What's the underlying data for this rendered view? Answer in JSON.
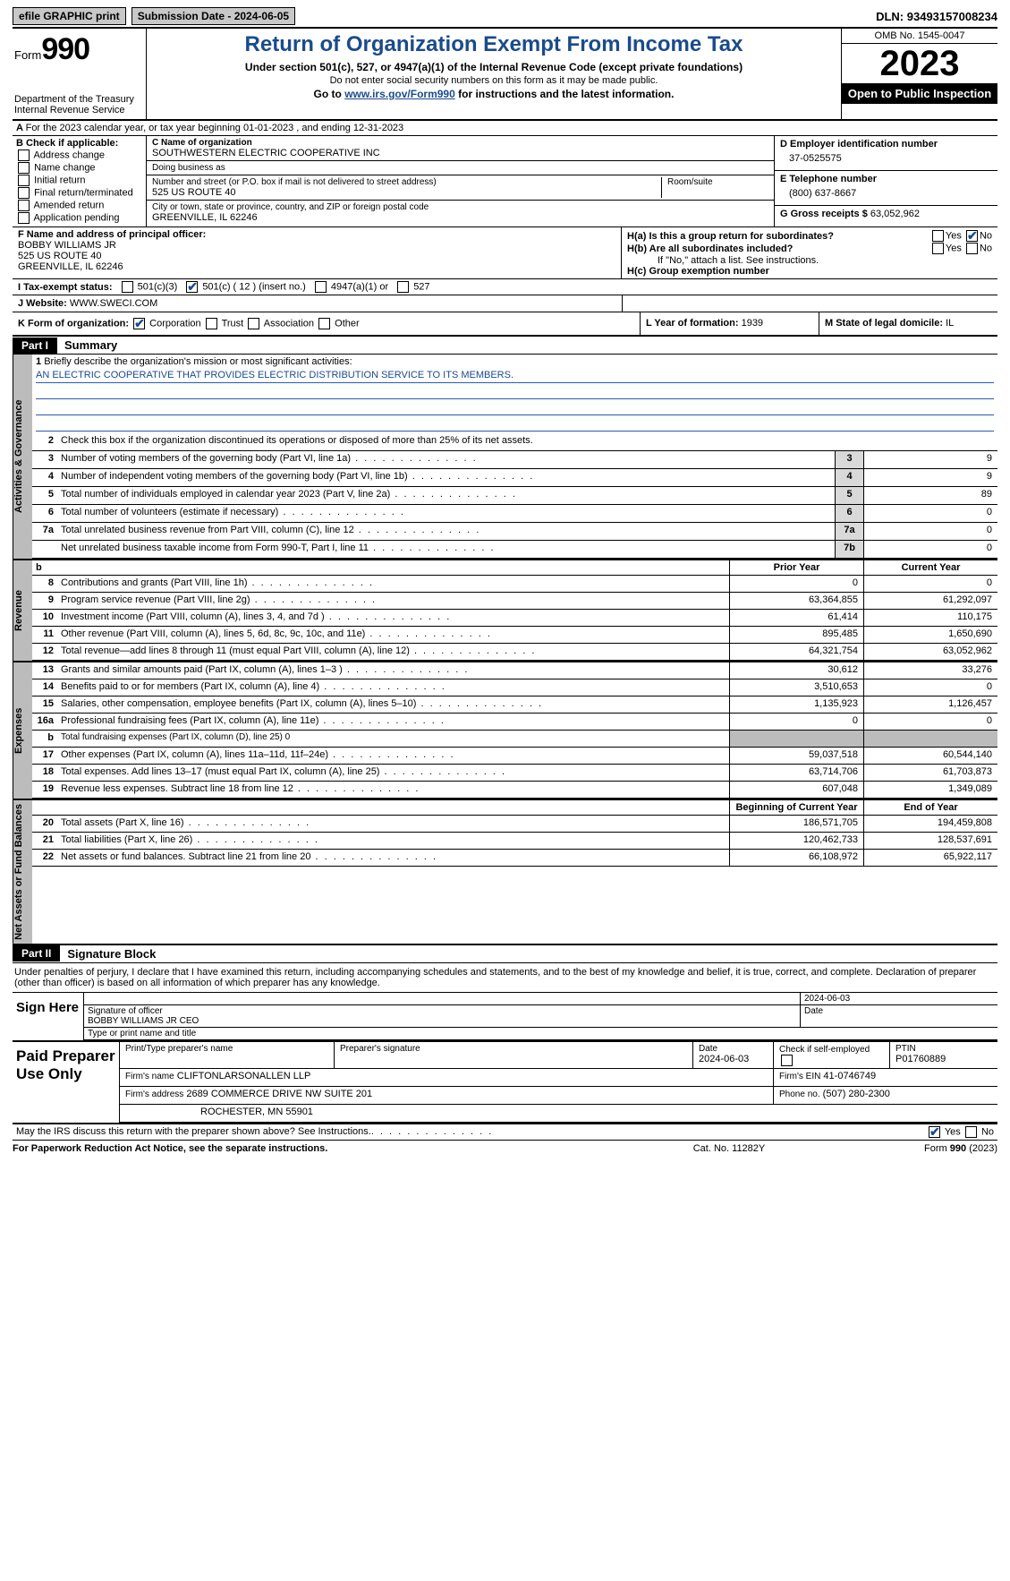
{
  "topbar": {
    "efile": "efile GRAPHIC print",
    "submission": "Submission Date - 2024-06-05",
    "dln_label": "DLN:",
    "dln": "93493157008234"
  },
  "header": {
    "form_prefix": "Form",
    "form_no": "990",
    "dept": "Department of the Treasury",
    "irs": "Internal Revenue Service",
    "title": "Return of Organization Exempt From Income Tax",
    "sub1": "Under section 501(c), 527, or 4947(a)(1) of the Internal Revenue Code (except private foundations)",
    "sub2": "Do not enter social security numbers on this form as it may be made public.",
    "sub3_pre": "Go to ",
    "sub3_link": "www.irs.gov/Form990",
    "sub3_post": " for instructions and the latest information.",
    "omb": "OMB No. 1545-0047",
    "year": "2023",
    "open": "Open to Public Inspection"
  },
  "A": {
    "text": "For the 2023 calendar year, or tax year beginning 01-01-2023   , and ending 12-31-2023"
  },
  "B": {
    "label": "B Check if applicable:",
    "opts": [
      "Address change",
      "Name change",
      "Initial return",
      "Final return/terminated",
      "Amended return",
      "Application pending"
    ]
  },
  "C": {
    "name_lbl": "C Name of organization",
    "name": "SOUTHWESTERN ELECTRIC COOPERATIVE INC",
    "dba_lbl": "Doing business as",
    "dba": "",
    "addr_lbl": "Number and street (or P.O. box if mail is not delivered to street address)",
    "room_lbl": "Room/suite",
    "addr": "525 US ROUTE 40",
    "city_lbl": "City or town, state or province, country, and ZIP or foreign postal code",
    "city": "GREENVILLE, IL  62246"
  },
  "D": {
    "lbl": "D Employer identification number",
    "val": "37-0525575"
  },
  "E": {
    "lbl": "E Telephone number",
    "val": "(800) 637-8667"
  },
  "G": {
    "lbl": "G Gross receipts $",
    "val": "63,052,962"
  },
  "F": {
    "lbl": "F  Name and address of principal officer:",
    "name": "BOBBY WILLIAMS JR",
    "addr": "525 US ROUTE 40",
    "city": "GREENVILLE, IL  62246"
  },
  "H": {
    "a_lbl": "H(a)  Is this a group return for subordinates?",
    "b_lbl": "H(b)  Are all subordinates included?",
    "b_note": "If \"No,\" attach a list. See instructions.",
    "c_lbl": "H(c)  Group exemption number",
    "yes": "Yes",
    "no": "No",
    "a_yes": false,
    "a_no": true,
    "b_yes": false,
    "b_no": false
  },
  "I": {
    "lbl": "I    Tax-exempt status:",
    "c3": "501(c)(3)",
    "c": "501(c) ( 12 ) (insert no.)",
    "a1": "4947(a)(1) or",
    "s527": "527",
    "c3_chk": false,
    "c_chk": true,
    "a1_chk": false,
    "s527_chk": false
  },
  "J": {
    "lbl": "J    Website:",
    "val": "WWW.SWECI.COM"
  },
  "K": {
    "lbl": "K Form of organization:",
    "corp": "Corporation",
    "trust": "Trust",
    "assoc": "Association",
    "other": "Other",
    "corp_chk": true
  },
  "L": {
    "lbl": "L Year of formation:",
    "val": "1939"
  },
  "M": {
    "lbl": "M State of legal domicile:",
    "val": "IL"
  },
  "part1": {
    "tag": "Part I",
    "title": "Summary"
  },
  "mission": {
    "q": "Briefly describe the organization's mission or most significant activities:",
    "text": "AN ELECTRIC COOPERATIVE THAT PROVIDES ELECTRIC DISTRIBUTION SERVICE TO ITS MEMBERS."
  },
  "vtabs": {
    "gov": "Activities & Governance",
    "rev": "Revenue",
    "exp": "Expenses",
    "net": "Net Assets or Fund Balances"
  },
  "lines_top": [
    {
      "n": "2",
      "t": "Check this box      if the organization discontinued its operations or disposed of more than 25% of its net assets."
    },
    {
      "n": "3",
      "t": "Number of voting members of the governing body (Part VI, line 1a)",
      "box": "3",
      "v": "9"
    },
    {
      "n": "4",
      "t": "Number of independent voting members of the governing body (Part VI, line 1b)",
      "box": "4",
      "v": "9"
    },
    {
      "n": "5",
      "t": "Total number of individuals employed in calendar year 2023 (Part V, line 2a)",
      "box": "5",
      "v": "89"
    },
    {
      "n": "6",
      "t": "Total number of volunteers (estimate if necessary)",
      "box": "6",
      "v": "0"
    },
    {
      "n": "7a",
      "t": "Total unrelated business revenue from Part VIII, column (C), line 12",
      "box": "7a",
      "v": "0"
    },
    {
      "n": "",
      "t": "Net unrelated business taxable income from Form 990-T, Part I, line 11",
      "box": "7b",
      "v": "0"
    }
  ],
  "col_hdr": {
    "b": "b",
    "prior": "Prior Year",
    "curr": "Current Year"
  },
  "revenue": [
    {
      "n": "8",
      "t": "Contributions and grants (Part VIII, line 1h)",
      "p": "0",
      "c": "0"
    },
    {
      "n": "9",
      "t": "Program service revenue (Part VIII, line 2g)",
      "p": "63,364,855",
      "c": "61,292,097"
    },
    {
      "n": "10",
      "t": "Investment income (Part VIII, column (A), lines 3, 4, and 7d )",
      "p": "61,414",
      "c": "110,175"
    },
    {
      "n": "11",
      "t": "Other revenue (Part VIII, column (A), lines 5, 6d, 8c, 9c, 10c, and 11e)",
      "p": "895,485",
      "c": "1,650,690"
    },
    {
      "n": "12",
      "t": "Total revenue—add lines 8 through 11 (must equal Part VIII, column (A), line 12)",
      "p": "64,321,754",
      "c": "63,052,962"
    }
  ],
  "expenses": [
    {
      "n": "13",
      "t": "Grants and similar amounts paid (Part IX, column (A), lines 1–3 )",
      "p": "30,612",
      "c": "33,276"
    },
    {
      "n": "14",
      "t": "Benefits paid to or for members (Part IX, column (A), line 4)",
      "p": "3,510,653",
      "c": "0"
    },
    {
      "n": "15",
      "t": "Salaries, other compensation, employee benefits (Part IX, column (A), lines 5–10)",
      "p": "1,135,923",
      "c": "1,126,457"
    },
    {
      "n": "16a",
      "t": "Professional fundraising fees (Part IX, column (A), line 11e)",
      "p": "0",
      "c": "0"
    },
    {
      "n": "b",
      "t": "Total fundraising expenses (Part IX, column (D), line 25) 0",
      "shade": true
    },
    {
      "n": "17",
      "t": "Other expenses (Part IX, column (A), lines 11a–11d, 11f–24e)",
      "p": "59,037,518",
      "c": "60,544,140"
    },
    {
      "n": "18",
      "t": "Total expenses. Add lines 13–17 (must equal Part IX, column (A), line 25)",
      "p": "63,714,706",
      "c": "61,703,873"
    },
    {
      "n": "19",
      "t": "Revenue less expenses. Subtract line 18 from line 12",
      "p": "607,048",
      "c": "1,349,089"
    }
  ],
  "net_hdr": {
    "begin": "Beginning of Current Year",
    "end": "End of Year"
  },
  "netassets": [
    {
      "n": "20",
      "t": "Total assets (Part X, line 16)",
      "p": "186,571,705",
      "c": "194,459,808"
    },
    {
      "n": "21",
      "t": "Total liabilities (Part X, line 26)",
      "p": "120,462,733",
      "c": "128,537,691"
    },
    {
      "n": "22",
      "t": "Net assets or fund balances. Subtract line 21 from line 20",
      "p": "66,108,972",
      "c": "65,922,117"
    }
  ],
  "part2": {
    "tag": "Part II",
    "title": "Signature Block"
  },
  "sig_intro": "Under penalties of perjury, I declare that I have examined this return, including accompanying schedules and statements, and to the best of my knowledge and belief, it is true, correct, and complete. Declaration of preparer (other than officer) is based on all information of which preparer has any knowledge.",
  "sign": {
    "here": "Sign Here",
    "date": "2024-06-03",
    "sig_lbl": "Signature of officer",
    "name": "BOBBY WILLIAMS JR  CEO",
    "name_lbl": "Type or print name and title",
    "date_lbl": "Date"
  },
  "prep": {
    "label": "Paid Preparer Use Only",
    "pt_lbl": "Print/Type preparer's name",
    "sig_lbl": "Preparer's signature",
    "date_lbl": "Date",
    "date": "2024-06-03",
    "self_lbl": "Check       if self-employed",
    "self_chk": false,
    "ptin_lbl": "PTIN",
    "ptin": "P01760889",
    "firm_lbl": "Firm's name",
    "firm": "CLIFTONLARSONALLEN LLP",
    "ein_lbl": "Firm's EIN",
    "ein": "41-0746749",
    "addr_lbl": "Firm's address",
    "addr1": "2689 COMMERCE DRIVE NW SUITE 201",
    "addr2": "ROCHESTER, MN  55901",
    "phone_lbl": "Phone no.",
    "phone": "(507) 280-2300"
  },
  "discuss": {
    "q": "May the IRS discuss this return with the preparer shown above? See Instructions.",
    "yes": "Yes",
    "no": "No",
    "yes_chk": true,
    "no_chk": false
  },
  "footer": {
    "l": "For Paperwork Reduction Act Notice, see the separate instructions.",
    "m": "Cat. No. 11282Y",
    "r_pre": "Form ",
    "r_form": "990",
    "r_yr": " (2023)"
  }
}
